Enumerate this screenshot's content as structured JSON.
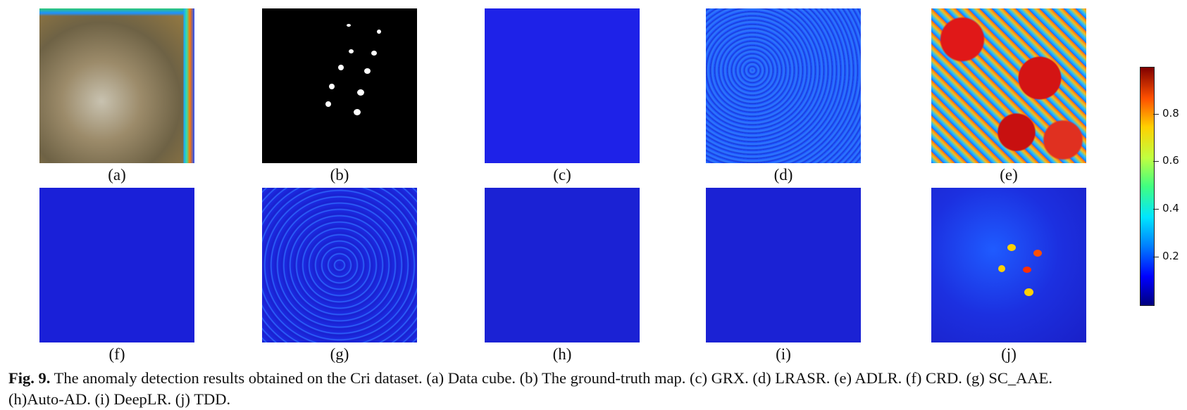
{
  "panels": [
    {
      "label": "(a)",
      "kind": "data-cube"
    },
    {
      "label": "(b)",
      "kind": "ground-truth"
    },
    {
      "label": "(c)",
      "kind": "detection-map"
    },
    {
      "label": "(d)",
      "kind": "detection-map"
    },
    {
      "label": "(e)",
      "kind": "detection-map"
    },
    {
      "label": "(f)",
      "kind": "detection-map"
    },
    {
      "label": "(g)",
      "kind": "detection-map"
    },
    {
      "label": "(h)",
      "kind": "detection-map"
    },
    {
      "label": "(i)",
      "kind": "detection-map"
    },
    {
      "label": "(j)",
      "kind": "detection-map"
    }
  ],
  "colorbar": {
    "ticks": [
      "0.8",
      "0.6",
      "0.4",
      "0.2"
    ],
    "colormap": "jet"
  },
  "caption": {
    "fig_label": "Fig. 9.",
    "text_line1": " The anomaly detection results obtained on the Cri dataset. (a) Data cube. (b) The ground-truth map. (c) GRX. (d) LRASR. (e) ADLR. (f) CRD. (g) SC_AAE.",
    "text_line2": "(h)Auto-AD. (i) DeepLR. (j) TDD."
  }
}
